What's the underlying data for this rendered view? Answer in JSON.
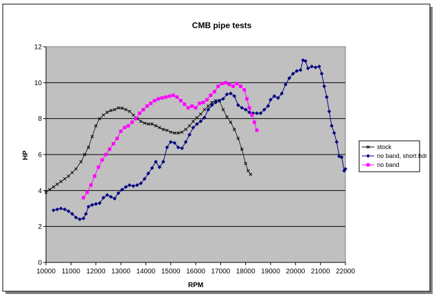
{
  "chart_data": {
    "type": "line",
    "title": "CMB pipe tests",
    "xlabel": "RPM",
    "ylabel": "HP",
    "xlim": [
      10000,
      22000
    ],
    "ylim": [
      0,
      12
    ],
    "x_ticks": [
      "10000",
      "11000",
      "12000",
      "13000",
      "14000",
      "15000",
      "16000",
      "17000",
      "18000",
      "19000",
      "20000",
      "21000",
      "22000"
    ],
    "y_ticks": [
      "0",
      "2",
      "4",
      "6",
      "8",
      "10",
      "12"
    ],
    "grid": "horizontal major",
    "legend_position": "right",
    "plot_background": "#c0c0c0",
    "series": [
      {
        "name": "stock",
        "color": "#000000",
        "marker": "x",
        "points": [
          [
            10000,
            3.9
          ],
          [
            10150,
            4.05
          ],
          [
            10300,
            4.2
          ],
          [
            10450,
            4.35
          ],
          [
            10600,
            4.5
          ],
          [
            10750,
            4.65
          ],
          [
            10900,
            4.8
          ],
          [
            11050,
            5.0
          ],
          [
            11200,
            5.2
          ],
          [
            11400,
            5.6
          ],
          [
            11550,
            6.0
          ],
          [
            11700,
            6.4
          ],
          [
            11850,
            7.0
          ],
          [
            12000,
            7.6
          ],
          [
            12150,
            8.0
          ],
          [
            12300,
            8.2
          ],
          [
            12450,
            8.35
          ],
          [
            12600,
            8.45
          ],
          [
            12750,
            8.5
          ],
          [
            12900,
            8.6
          ],
          [
            13050,
            8.58
          ],
          [
            13200,
            8.5
          ],
          [
            13350,
            8.4
          ],
          [
            13500,
            8.2
          ],
          [
            13650,
            8.0
          ],
          [
            13800,
            7.85
          ],
          [
            13950,
            7.75
          ],
          [
            14100,
            7.7
          ],
          [
            14250,
            7.7
          ],
          [
            14400,
            7.6
          ],
          [
            14550,
            7.5
          ],
          [
            14700,
            7.4
          ],
          [
            14850,
            7.35
          ],
          [
            15000,
            7.25
          ],
          [
            15150,
            7.2
          ],
          [
            15300,
            7.2
          ],
          [
            15450,
            7.25
          ],
          [
            15600,
            7.4
          ],
          [
            15750,
            7.6
          ],
          [
            15900,
            7.85
          ],
          [
            16050,
            8.05
          ],
          [
            16200,
            8.25
          ],
          [
            16350,
            8.5
          ],
          [
            16500,
            8.7
          ],
          [
            16650,
            8.9
          ],
          [
            16800,
            9.0
          ],
          [
            16950,
            9.0
          ],
          [
            17100,
            8.5
          ],
          [
            17250,
            8.1
          ],
          [
            17400,
            7.8
          ],
          [
            17550,
            7.4
          ],
          [
            17700,
            6.9
          ],
          [
            17850,
            6.3
          ],
          [
            18000,
            5.5
          ],
          [
            18100,
            5.1
          ],
          [
            18200,
            4.9
          ]
        ]
      },
      {
        "name": "no band, short hdr",
        "color": "#000080",
        "marker": "diamond",
        "points": [
          [
            10300,
            2.9
          ],
          [
            10450,
            2.95
          ],
          [
            10600,
            3.0
          ],
          [
            10750,
            2.95
          ],
          [
            10900,
            2.85
          ],
          [
            11050,
            2.7
          ],
          [
            11200,
            2.5
          ],
          [
            11350,
            2.4
          ],
          [
            11500,
            2.45
          ],
          [
            11600,
            2.7
          ],
          [
            11700,
            3.1
          ],
          [
            11850,
            3.2
          ],
          [
            12000,
            3.25
          ],
          [
            12150,
            3.3
          ],
          [
            12300,
            3.6
          ],
          [
            12450,
            3.75
          ],
          [
            12600,
            3.65
          ],
          [
            12750,
            3.55
          ],
          [
            12900,
            3.85
          ],
          [
            13050,
            4.05
          ],
          [
            13200,
            4.2
          ],
          [
            13350,
            4.3
          ],
          [
            13500,
            4.25
          ],
          [
            13650,
            4.3
          ],
          [
            13800,
            4.4
          ],
          [
            13950,
            4.65
          ],
          [
            14100,
            4.95
          ],
          [
            14250,
            5.25
          ],
          [
            14400,
            5.6
          ],
          [
            14550,
            5.3
          ],
          [
            14700,
            5.6
          ],
          [
            14850,
            6.4
          ],
          [
            15000,
            6.7
          ],
          [
            15150,
            6.65
          ],
          [
            15300,
            6.4
          ],
          [
            15450,
            6.35
          ],
          [
            15600,
            6.7
          ],
          [
            15750,
            7.1
          ],
          [
            15900,
            7.5
          ],
          [
            16050,
            7.7
          ],
          [
            16200,
            7.85
          ],
          [
            16350,
            8.05
          ],
          [
            16500,
            8.5
          ],
          [
            16650,
            8.75
          ],
          [
            16800,
            8.9
          ],
          [
            16950,
            9.0
          ],
          [
            17100,
            9.1
          ],
          [
            17250,
            9.35
          ],
          [
            17400,
            9.4
          ],
          [
            17550,
            9.25
          ],
          [
            17700,
            8.75
          ],
          [
            17850,
            8.6
          ],
          [
            18000,
            8.5
          ],
          [
            18150,
            8.35
          ],
          [
            18300,
            8.3
          ],
          [
            18450,
            8.3
          ],
          [
            18600,
            8.3
          ],
          [
            18750,
            8.5
          ],
          [
            18900,
            8.7
          ],
          [
            19000,
            9.05
          ],
          [
            19150,
            9.25
          ],
          [
            19300,
            9.15
          ],
          [
            19450,
            9.4
          ],
          [
            19600,
            9.9
          ],
          [
            19750,
            10.25
          ],
          [
            19900,
            10.5
          ],
          [
            20050,
            10.65
          ],
          [
            20200,
            10.7
          ],
          [
            20300,
            11.25
          ],
          [
            20400,
            11.2
          ],
          [
            20500,
            10.8
          ],
          [
            20650,
            10.9
          ],
          [
            20800,
            10.85
          ],
          [
            20950,
            10.9
          ],
          [
            21050,
            10.5
          ],
          [
            21150,
            9.8
          ],
          [
            21250,
            9.2
          ],
          [
            21350,
            8.4
          ],
          [
            21450,
            7.6
          ],
          [
            21550,
            7.2
          ],
          [
            21650,
            6.7
          ],
          [
            21750,
            5.9
          ],
          [
            21850,
            5.85
          ],
          [
            21950,
            5.1
          ],
          [
            22000,
            5.2
          ]
        ]
      },
      {
        "name": "no band",
        "color": "#ff00ff",
        "marker": "square",
        "points": [
          [
            11500,
            3.6
          ],
          [
            11650,
            3.9
          ],
          [
            11800,
            4.3
          ],
          [
            11950,
            4.8
          ],
          [
            12100,
            5.3
          ],
          [
            12250,
            5.7
          ],
          [
            12400,
            6.0
          ],
          [
            12550,
            6.3
          ],
          [
            12700,
            6.6
          ],
          [
            12850,
            6.9
          ],
          [
            13000,
            7.3
          ],
          [
            13150,
            7.5
          ],
          [
            13300,
            7.6
          ],
          [
            13450,
            7.8
          ],
          [
            13600,
            8.0
          ],
          [
            13750,
            8.3
          ],
          [
            13900,
            8.5
          ],
          [
            14050,
            8.7
          ],
          [
            14200,
            8.85
          ],
          [
            14350,
            9.0
          ],
          [
            14500,
            9.1
          ],
          [
            14650,
            9.15
          ],
          [
            14800,
            9.2
          ],
          [
            14950,
            9.25
          ],
          [
            15100,
            9.3
          ],
          [
            15250,
            9.2
          ],
          [
            15400,
            9.0
          ],
          [
            15550,
            8.8
          ],
          [
            15700,
            8.6
          ],
          [
            15850,
            8.7
          ],
          [
            16000,
            8.6
          ],
          [
            16150,
            8.85
          ],
          [
            16300,
            8.9
          ],
          [
            16450,
            9.05
          ],
          [
            16600,
            9.3
          ],
          [
            16750,
            9.5
          ],
          [
            16900,
            9.8
          ],
          [
            17050,
            9.95
          ],
          [
            17200,
            10.0
          ],
          [
            17350,
            9.9
          ],
          [
            17500,
            9.8
          ],
          [
            17650,
            9.95
          ],
          [
            17800,
            9.8
          ],
          [
            17950,
            9.6
          ],
          [
            18050,
            9.1
          ],
          [
            18150,
            8.6
          ],
          [
            18250,
            8.2
          ],
          [
            18350,
            7.8
          ],
          [
            18450,
            7.35
          ]
        ]
      }
    ]
  }
}
